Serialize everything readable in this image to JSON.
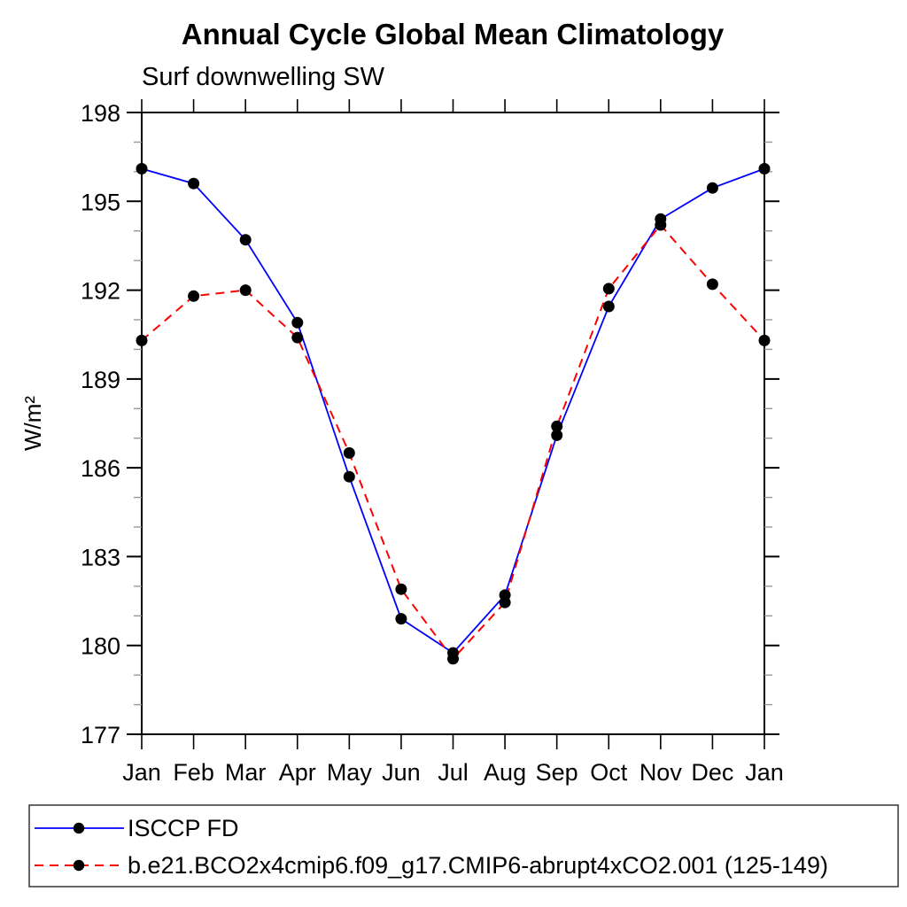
{
  "chart_data": {
    "type": "line",
    "title": "Annual Cycle Global Mean Climatology",
    "subtitle": "Surf downwelling SW",
    "ylabel": "W/m²",
    "categories": [
      "Jan",
      "Feb",
      "Mar",
      "Apr",
      "May",
      "Jun",
      "Jul",
      "Aug",
      "Sep",
      "Oct",
      "Nov",
      "Dec",
      "Jan"
    ],
    "ylim": [
      177,
      198
    ],
    "yticks_major": [
      177,
      180,
      183,
      186,
      189,
      192,
      195,
      198
    ],
    "ytick_minor_step": 1,
    "grid": false,
    "legend_position": "bottom-left boxed",
    "axis_color": "#000000",
    "minor_tick_color": "#999999",
    "marker_color": "#000000",
    "series": [
      {
        "name": "ISCCP FD",
        "color": "#0000ff",
        "line_style": "solid",
        "marker": "filled-circle",
        "values": [
          196.1,
          195.6,
          193.7,
          190.9,
          185.7,
          180.9,
          179.75,
          181.7,
          187.1,
          191.45,
          194.4,
          195.45,
          196.1
        ]
      },
      {
        "name": "b.e21.BCO2x4cmip6.f09_g17.CMIP6-abrupt4xCO2.001 (125-149)",
        "color": "#ff0000",
        "line_style": "dashed",
        "marker": "filled-circle",
        "values": [
          190.3,
          191.8,
          192.0,
          190.4,
          186.5,
          181.9,
          179.55,
          181.45,
          187.4,
          192.05,
          194.2,
          192.2,
          190.3
        ]
      }
    ]
  }
}
